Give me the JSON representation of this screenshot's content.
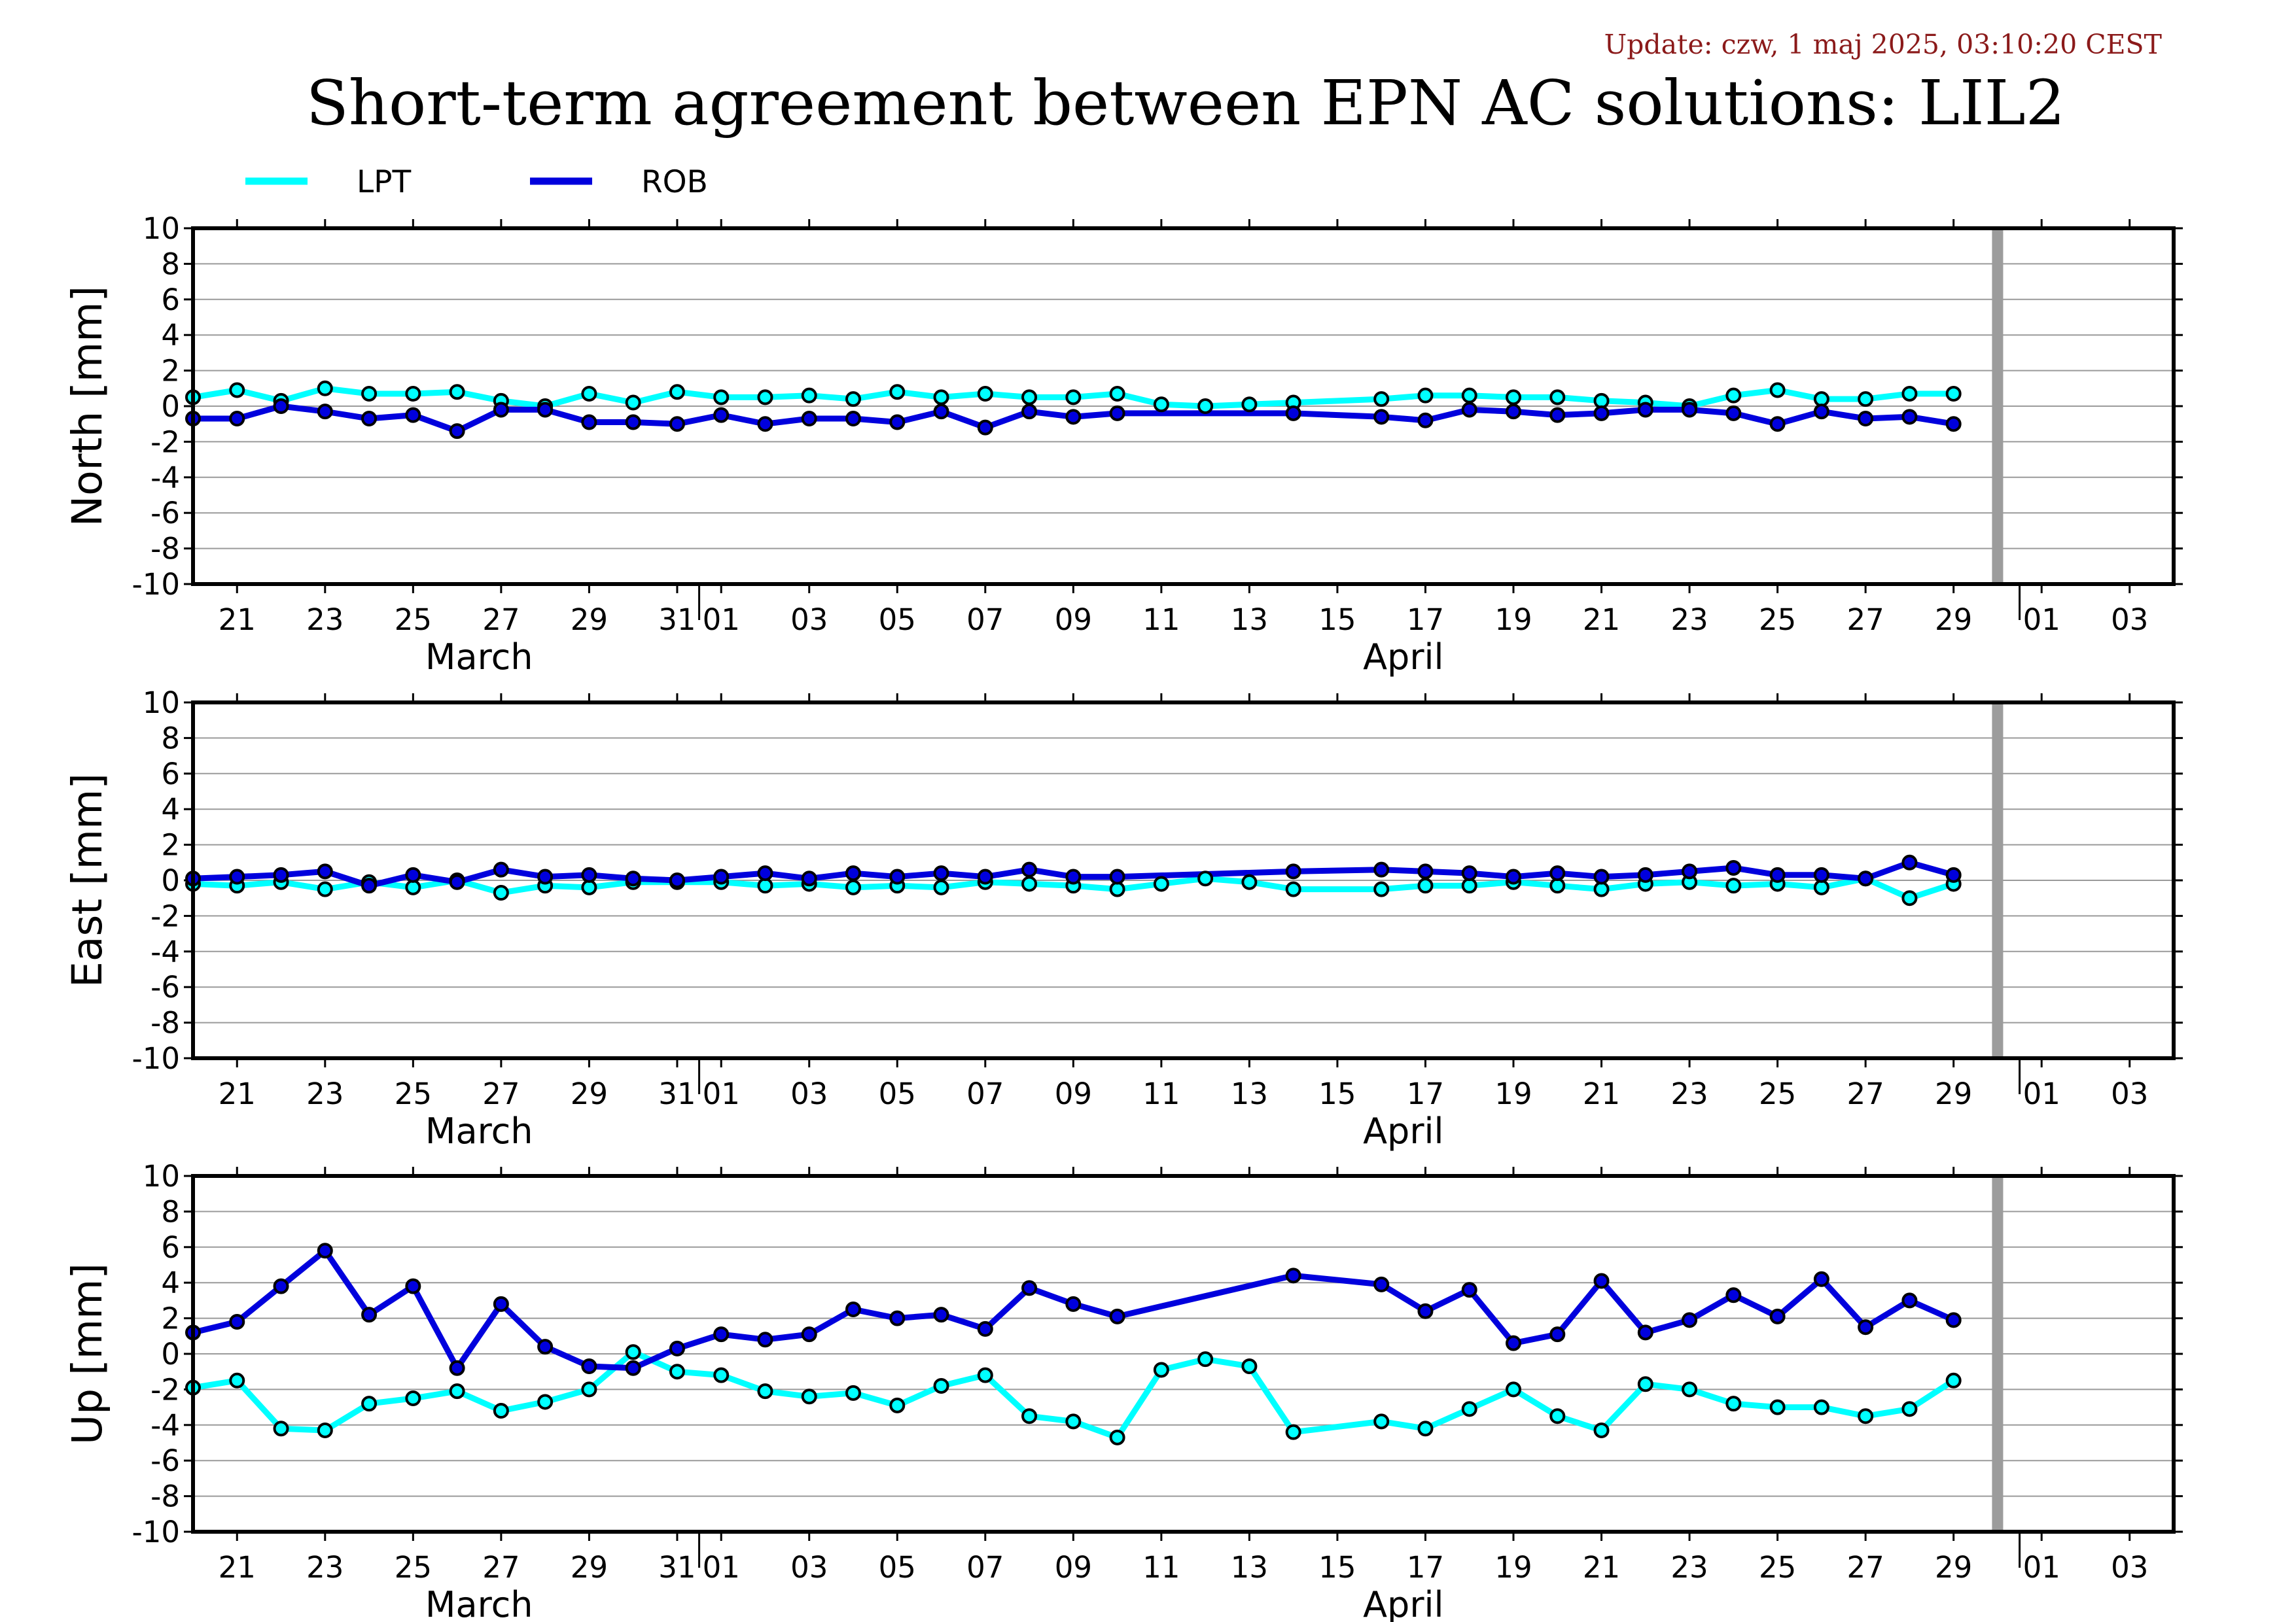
{
  "header": {
    "update": "Update: czw, 1 maj 2025, 03:10:20 CEST",
    "title": "Short-term agreement between EPN AC solutions: LIL2"
  },
  "legend": [
    {
      "name": "LPT",
      "color": "#00ffff"
    },
    {
      "name": "ROB",
      "color": "#0000dd"
    }
  ],
  "chart_data": [
    {
      "type": "line",
      "ylabel": "North [mm]",
      "ylim": [
        -10,
        10
      ],
      "yticks": [
        10,
        8,
        6,
        4,
        2,
        0,
        -2,
        -4,
        -6,
        -8,
        -10
      ],
      "xlim": [
        "2025-03-20",
        "2025-05-04"
      ],
      "xtick_labels": [
        "21",
        "23",
        "25",
        "27",
        "29",
        "31",
        "01",
        "03",
        "05",
        "07",
        "09",
        "11",
        "13",
        "15",
        "17",
        "19",
        "21",
        "23",
        "25",
        "27",
        "29",
        "01",
        "03"
      ],
      "months": [
        "March",
        "April"
      ],
      "grid": true,
      "marker": "2025-04-30",
      "series": [
        {
          "name": "LPT",
          "color": "#00ffff",
          "x": [
            "2025-03-20",
            "2025-03-21",
            "2025-03-22",
            "2025-03-23",
            "2025-03-24",
            "2025-03-25",
            "2025-03-26",
            "2025-03-27",
            "2025-03-28",
            "2025-03-29",
            "2025-03-30",
            "2025-03-31",
            "2025-04-01",
            "2025-04-02",
            "2025-04-03",
            "2025-04-04",
            "2025-04-05",
            "2025-04-06",
            "2025-04-07",
            "2025-04-08",
            "2025-04-09",
            "2025-04-10",
            "2025-04-11",
            "2025-04-12",
            "2025-04-13",
            "2025-04-14",
            "2025-04-16",
            "2025-04-17",
            "2025-04-18",
            "2025-04-19",
            "2025-04-20",
            "2025-04-21",
            "2025-04-22",
            "2025-04-23",
            "2025-04-24",
            "2025-04-25",
            "2025-04-26",
            "2025-04-27",
            "2025-04-28",
            "2025-04-29"
          ],
          "values": [
            0.5,
            0.9,
            0.3,
            1.0,
            0.7,
            0.7,
            0.8,
            0.3,
            0.0,
            0.7,
            0.2,
            0.8,
            0.5,
            0.5,
            0.6,
            0.4,
            0.8,
            0.5,
            0.7,
            0.5,
            0.5,
            0.7,
            0.1,
            0.0,
            0.1,
            0.2,
            0.4,
            0.6,
            0.6,
            0.5,
            0.5,
            0.3,
            0.2,
            0.0,
            0.6,
            0.9,
            0.4,
            0.4,
            0.7,
            0.7
          ]
        },
        {
          "name": "ROB",
          "color": "#0000dd",
          "x": [
            "2025-03-20",
            "2025-03-21",
            "2025-03-22",
            "2025-03-23",
            "2025-03-24",
            "2025-03-25",
            "2025-03-26",
            "2025-03-27",
            "2025-03-28",
            "2025-03-29",
            "2025-03-30",
            "2025-03-31",
            "2025-04-01",
            "2025-04-02",
            "2025-04-03",
            "2025-04-04",
            "2025-04-05",
            "2025-04-06",
            "2025-04-07",
            "2025-04-08",
            "2025-04-09",
            "2025-04-10",
            "2025-04-14",
            "2025-04-16",
            "2025-04-17",
            "2025-04-18",
            "2025-04-19",
            "2025-04-20",
            "2025-04-21",
            "2025-04-22",
            "2025-04-23",
            "2025-04-24",
            "2025-04-25",
            "2025-04-26",
            "2025-04-27",
            "2025-04-28",
            "2025-04-29"
          ],
          "values": [
            -0.7,
            -0.7,
            0.0,
            -0.3,
            -0.7,
            -0.5,
            -1.4,
            -0.2,
            -0.2,
            -0.9,
            -0.9,
            -1.0,
            -0.5,
            -1.0,
            -0.7,
            -0.7,
            -0.9,
            -0.3,
            -1.2,
            -0.3,
            -0.6,
            -0.4,
            -0.4,
            -0.6,
            -0.8,
            -0.2,
            -0.3,
            -0.5,
            -0.4,
            -0.2,
            -0.2,
            -0.4,
            -1.0,
            -0.3,
            -0.7,
            -0.6,
            -1.0
          ]
        }
      ]
    },
    {
      "type": "line",
      "ylabel": "East [mm]",
      "ylim": [
        -10,
        10
      ],
      "yticks": [
        10,
        8,
        6,
        4,
        2,
        0,
        -2,
        -4,
        -6,
        -8,
        -10
      ],
      "xlim": [
        "2025-03-20",
        "2025-05-04"
      ],
      "xtick_labels": [
        "21",
        "23",
        "25",
        "27",
        "29",
        "31",
        "01",
        "03",
        "05",
        "07",
        "09",
        "11",
        "13",
        "15",
        "17",
        "19",
        "21",
        "23",
        "25",
        "27",
        "29",
        "01",
        "03"
      ],
      "months": [
        "March",
        "April"
      ],
      "grid": true,
      "marker": "2025-04-30",
      "series": [
        {
          "name": "LPT",
          "color": "#00ffff",
          "x": [
            "2025-03-20",
            "2025-03-21",
            "2025-03-22",
            "2025-03-23",
            "2025-03-24",
            "2025-03-25",
            "2025-03-26",
            "2025-03-27",
            "2025-03-28",
            "2025-03-29",
            "2025-03-30",
            "2025-03-31",
            "2025-04-01",
            "2025-04-02",
            "2025-04-03",
            "2025-04-04",
            "2025-04-05",
            "2025-04-06",
            "2025-04-07",
            "2025-04-08",
            "2025-04-09",
            "2025-04-10",
            "2025-04-11",
            "2025-04-12",
            "2025-04-13",
            "2025-04-14",
            "2025-04-16",
            "2025-04-17",
            "2025-04-18",
            "2025-04-19",
            "2025-04-20",
            "2025-04-21",
            "2025-04-22",
            "2025-04-23",
            "2025-04-24",
            "2025-04-25",
            "2025-04-26",
            "2025-04-27",
            "2025-04-28",
            "2025-04-29"
          ],
          "values": [
            -0.2,
            -0.3,
            -0.1,
            -0.5,
            -0.1,
            -0.4,
            0.0,
            -0.7,
            -0.3,
            -0.4,
            -0.1,
            -0.1,
            -0.1,
            -0.3,
            -0.2,
            -0.4,
            -0.3,
            -0.4,
            -0.1,
            -0.2,
            -0.3,
            -0.5,
            -0.2,
            0.1,
            -0.1,
            -0.5,
            -0.5,
            -0.3,
            -0.3,
            -0.1,
            -0.3,
            -0.5,
            -0.2,
            -0.1,
            -0.3,
            -0.2,
            -0.4,
            0.1,
            -1.0,
            -0.2
          ]
        },
        {
          "name": "ROB",
          "color": "#0000dd",
          "x": [
            "2025-03-20",
            "2025-03-21",
            "2025-03-22",
            "2025-03-23",
            "2025-03-24",
            "2025-03-25",
            "2025-03-26",
            "2025-03-27",
            "2025-03-28",
            "2025-03-29",
            "2025-03-30",
            "2025-03-31",
            "2025-04-01",
            "2025-04-02",
            "2025-04-03",
            "2025-04-04",
            "2025-04-05",
            "2025-04-06",
            "2025-04-07",
            "2025-04-08",
            "2025-04-09",
            "2025-04-10",
            "2025-04-14",
            "2025-04-16",
            "2025-04-17",
            "2025-04-18",
            "2025-04-19",
            "2025-04-20",
            "2025-04-21",
            "2025-04-22",
            "2025-04-23",
            "2025-04-24",
            "2025-04-25",
            "2025-04-26",
            "2025-04-27",
            "2025-04-28",
            "2025-04-29"
          ],
          "values": [
            0.1,
            0.2,
            0.3,
            0.5,
            -0.3,
            0.3,
            -0.1,
            0.6,
            0.2,
            0.3,
            0.1,
            0.0,
            0.2,
            0.4,
            0.1,
            0.4,
            0.2,
            0.4,
            0.2,
            0.6,
            0.2,
            0.2,
            0.5,
            0.6,
            0.5,
            0.4,
            0.2,
            0.4,
            0.2,
            0.3,
            0.5,
            0.7,
            0.3,
            0.3,
            0.1,
            1.0,
            0.3
          ]
        }
      ]
    },
    {
      "type": "line",
      "ylabel": "Up [mm]",
      "ylim": [
        -10,
        10
      ],
      "yticks": [
        10,
        8,
        6,
        4,
        2,
        0,
        -2,
        -4,
        -6,
        -8,
        -10
      ],
      "xlim": [
        "2025-03-20",
        "2025-05-04"
      ],
      "xtick_labels": [
        "21",
        "23",
        "25",
        "27",
        "29",
        "31",
        "01",
        "03",
        "05",
        "07",
        "09",
        "11",
        "13",
        "15",
        "17",
        "19",
        "21",
        "23",
        "25",
        "27",
        "29",
        "01",
        "03"
      ],
      "months": [
        "March",
        "April"
      ],
      "grid": true,
      "marker": "2025-04-30",
      "series": [
        {
          "name": "LPT",
          "color": "#00ffff",
          "x": [
            "2025-03-20",
            "2025-03-21",
            "2025-03-22",
            "2025-03-23",
            "2025-03-24",
            "2025-03-25",
            "2025-03-26",
            "2025-03-27",
            "2025-03-28",
            "2025-03-29",
            "2025-03-30",
            "2025-03-31",
            "2025-04-01",
            "2025-04-02",
            "2025-04-03",
            "2025-04-04",
            "2025-04-05",
            "2025-04-06",
            "2025-04-07",
            "2025-04-08",
            "2025-04-09",
            "2025-04-10",
            "2025-04-11",
            "2025-04-12",
            "2025-04-13",
            "2025-04-14",
            "2025-04-16",
            "2025-04-17",
            "2025-04-18",
            "2025-04-19",
            "2025-04-20",
            "2025-04-21",
            "2025-04-22",
            "2025-04-23",
            "2025-04-24",
            "2025-04-25",
            "2025-04-26",
            "2025-04-27",
            "2025-04-28",
            "2025-04-29"
          ],
          "values": [
            -1.9,
            -1.5,
            -4.2,
            -4.3,
            -2.8,
            -2.5,
            -2.1,
            -3.2,
            -2.7,
            -2.0,
            0.1,
            -1.0,
            -1.2,
            -2.1,
            -2.4,
            -2.2,
            -2.9,
            -1.8,
            -1.2,
            -3.5,
            -3.8,
            -4.7,
            -0.9,
            -0.3,
            -0.7,
            -4.4,
            -3.8,
            -4.2,
            -3.1,
            -2.0,
            -3.5,
            -4.3,
            -1.7,
            -2.0,
            -2.8,
            -3.0,
            -3.0,
            -3.5,
            -3.1,
            -1.5
          ]
        },
        {
          "name": "ROB",
          "color": "#0000dd",
          "x": [
            "2025-03-20",
            "2025-03-21",
            "2025-03-22",
            "2025-03-23",
            "2025-03-24",
            "2025-03-25",
            "2025-03-26",
            "2025-03-27",
            "2025-03-28",
            "2025-03-29",
            "2025-03-30",
            "2025-03-31",
            "2025-04-01",
            "2025-04-02",
            "2025-04-03",
            "2025-04-04",
            "2025-04-05",
            "2025-04-06",
            "2025-04-07",
            "2025-04-08",
            "2025-04-09",
            "2025-04-10",
            "2025-04-14",
            "2025-04-16",
            "2025-04-17",
            "2025-04-18",
            "2025-04-19",
            "2025-04-20",
            "2025-04-21",
            "2025-04-22",
            "2025-04-23",
            "2025-04-24",
            "2025-04-25",
            "2025-04-26",
            "2025-04-27",
            "2025-04-28",
            "2025-04-29"
          ],
          "values": [
            1.2,
            1.8,
            3.8,
            5.8,
            2.2,
            3.8,
            -0.8,
            2.8,
            0.4,
            -0.7,
            -0.8,
            0.3,
            1.1,
            0.8,
            1.1,
            2.5,
            2.0,
            2.2,
            1.4,
            3.7,
            2.8,
            2.1,
            4.4,
            3.9,
            2.4,
            3.6,
            0.6,
            1.1,
            4.1,
            1.2,
            1.9,
            3.3,
            2.1,
            4.2,
            1.5,
            3.0,
            1.9
          ]
        }
      ]
    }
  ]
}
